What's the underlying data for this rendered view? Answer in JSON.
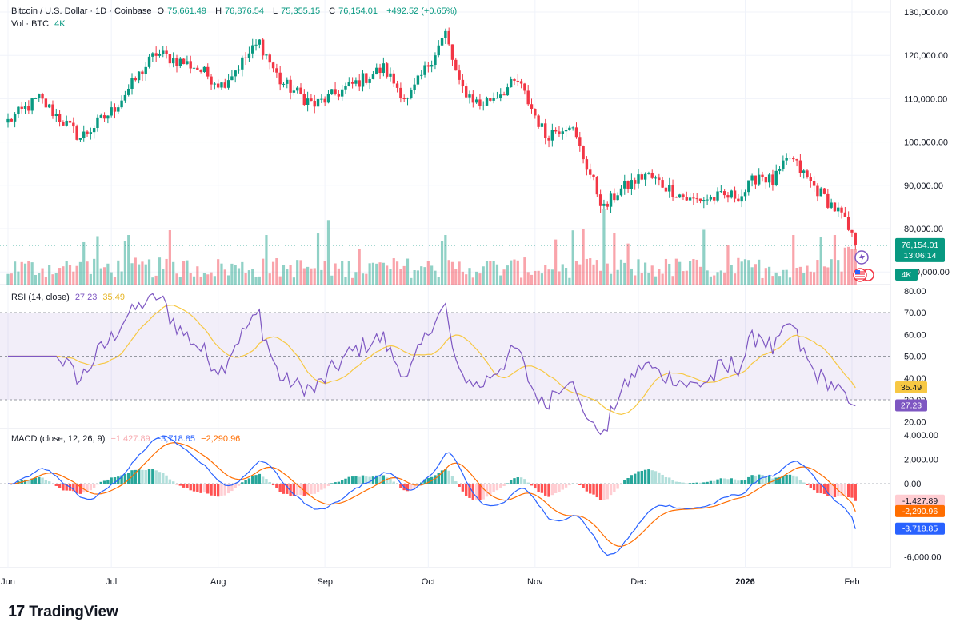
{
  "header": {
    "symbol": "Bitcoin / U.S. Dollar · 1D · Coinbase",
    "open_label": "O",
    "open": "75,661.49",
    "high_label": "H",
    "high": "76,876.54",
    "low_label": "L",
    "low": "75,355.15",
    "close_label": "C",
    "close": "76,154.01",
    "change": "+492.52 (+0.65%)"
  },
  "volume_legend": {
    "label": "Vol · BTC",
    "value": "4K"
  },
  "rsi_legend": {
    "label": "RSI (14, close)",
    "rsi": "27.23",
    "ma": "35.49"
  },
  "macd_legend": {
    "label": "MACD (close, 12, 26, 9)",
    "hist": "−1,427.89",
    "macd": "−3,718.85",
    "signal": "−2,290.96"
  },
  "branding": {
    "name": "TradingView",
    "mark": "17"
  },
  "colors": {
    "up": "#089981",
    "down": "#f23645",
    "rsi_line": "#7e57c2",
    "rsi_ma": "#f7c843",
    "macd_line": "#2962ff",
    "signal_line": "#ff6d00"
  },
  "chart_data": [
    {
      "type": "candlestick",
      "title": "Bitcoin / U.S. Dollar · 1D · Coinbase",
      "x_ticks": [
        "Jun",
        "Jul",
        "Aug",
        "Sep",
        "Oct",
        "Nov",
        "Dec",
        "2026",
        "Feb"
      ],
      "y_ticks": [
        "130,000.00",
        "120,000.00",
        "110,000.00",
        "100,000.00",
        "90,000.00",
        "80,000.00",
        "70,000.00"
      ],
      "ylim": [
        70000,
        130000
      ],
      "last_price_label": "76,154.01",
      "countdown_label": "13:06:14",
      "anchors": [
        [
          "06-01",
          104800
        ],
        [
          "06-10",
          110000
        ],
        [
          "06-22",
          101000
        ],
        [
          "07-01",
          107000
        ],
        [
          "07-10",
          116500
        ],
        [
          "07-14",
          120500
        ],
        [
          "07-25",
          117500
        ],
        [
          "08-02",
          113200
        ],
        [
          "08-13",
          123000
        ],
        [
          "08-19",
          114000
        ],
        [
          "08-29",
          108500
        ],
        [
          "09-12",
          114500
        ],
        [
          "09-18",
          117000
        ],
        [
          "09-25",
          109500
        ],
        [
          "10-01",
          118000
        ],
        [
          "10-06",
          125000
        ],
        [
          "10-10",
          113000
        ],
        [
          "10-16",
          108500
        ],
        [
          "10-27",
          114000
        ],
        [
          "11-04",
          101500
        ],
        [
          "11-11",
          104500
        ],
        [
          "11-21",
          84500
        ],
        [
          "11-25",
          88500
        ],
        [
          "12-03",
          92500
        ],
        [
          "12-16",
          86500
        ],
        [
          "12-31",
          87800
        ],
        [
          "01-05",
          92700
        ],
        [
          "01-09",
          90700
        ],
        [
          "01-14",
          96500
        ],
        [
          "01-20",
          90500
        ],
        [
          "01-29",
          83000
        ],
        [
          "02-02",
          76154
        ]
      ]
    },
    {
      "type": "bar",
      "title": "Vol · BTC",
      "last_value_label": "4K",
      "hidden_axis_label": "0,000.00"
    },
    {
      "type": "line",
      "title": "RSI (14, close)",
      "y_ticks": [
        "80.00",
        "70.00",
        "60.00",
        "50.00",
        "40.00",
        "30.00",
        "20.00"
      ],
      "ylim": [
        15,
        80
      ],
      "band": [
        30,
        70
      ],
      "series": [
        {
          "name": "RSI",
          "last": 27.23
        },
        {
          "name": "MA",
          "last": 35.49
        }
      ]
    },
    {
      "type": "line",
      "title": "MACD (close, 12, 26, 9)",
      "y_ticks": [
        "4,000.00",
        "2,000.00",
        "0.00",
        "-6,000.00"
      ],
      "ylim": [
        -6500,
        4000
      ],
      "series": [
        {
          "name": "Histogram",
          "last": -1427.89
        },
        {
          "name": "MACD",
          "last": -3718.85
        },
        {
          "name": "Signal",
          "last": -2290.96
        }
      ],
      "value_labels": [
        "-1,427.89",
        "-2,290.96",
        "-3,718.85"
      ]
    }
  ]
}
